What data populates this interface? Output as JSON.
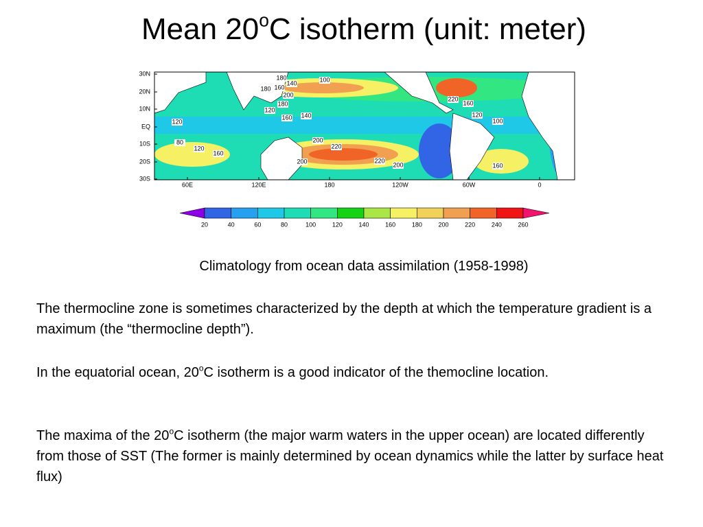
{
  "title": {
    "text": "Mean 20",
    "sup": "o",
    "rest": "C isotherm (unit: meter)"
  },
  "map": {
    "lat_labels": [
      "30N",
      "20N",
      "10N",
      "EQ",
      "10S",
      "20S",
      "30S"
    ],
    "lon_labels": [
      "60E",
      "120E",
      "180",
      "120W",
      "60W",
      "0"
    ],
    "contour_labels": [
      100,
      180,
      160,
      140,
      200,
      180,
      120,
      160,
      140,
      120,
      80,
      120,
      160,
      200,
      220,
      200,
      220,
      200,
      180,
      220,
      160,
      120,
      100,
      160
    ]
  },
  "colorbar": {
    "labels": [
      20,
      40,
      60,
      80,
      100,
      120,
      140,
      160,
      180,
      200,
      220,
      240,
      260
    ],
    "colors": [
      "#8c00e6",
      "#3264e6",
      "#28a0f0",
      "#1ec8e6",
      "#1edcb4",
      "#32e682",
      "#14d214",
      "#aae646",
      "#f5f064",
      "#f0d25a",
      "#f0a050",
      "#f06428",
      "#f01414",
      "#f0146e"
    ]
  },
  "caption": "Climatology from ocean data assimilation (1958-1998)",
  "paragraphs": [
    {
      "text": "The thermocline zone is sometimes characterized by the depth at which the temperature gradient is a maximum (the “thermocline depth”)."
    },
    {
      "text": "In the equatorial ocean, 20",
      "sup": "o",
      "rest": "C isotherm is a good indicator of the themocline location."
    },
    {
      "text": "The maxima of the 20",
      "sup": "o",
      "rest": "C isotherm (the major warm waters in the upper ocean) are located differently from those of SST (The former is mainly determined by ocean dynamics while the latter by surface heat flux)"
    }
  ]
}
